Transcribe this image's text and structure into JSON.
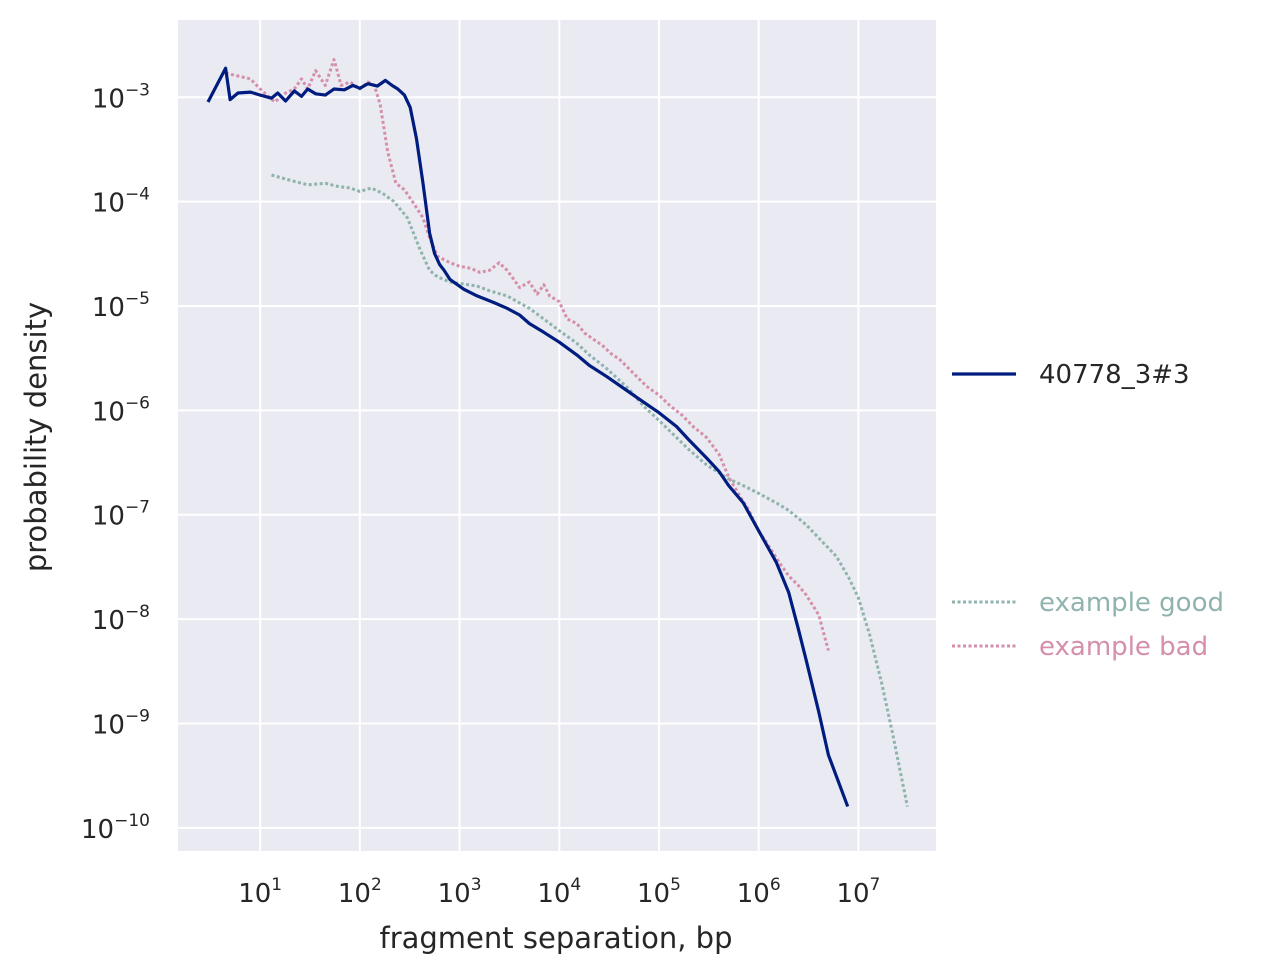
{
  "chart_data": {
    "type": "line",
    "title": "",
    "xlabel": "fragment separation, bp",
    "ylabel": "probability density",
    "x_scale": "log",
    "y_scale": "log",
    "xlim": [
      1.5,
      60000000
    ],
    "ylim": [
      6e-11,
      0.0055
    ],
    "grid": true,
    "x_ticks": [
      {
        "base": "10",
        "exp": "1",
        "value": 10
      },
      {
        "base": "10",
        "exp": "2",
        "value": 100
      },
      {
        "base": "10",
        "exp": "3",
        "value": 1000
      },
      {
        "base": "10",
        "exp": "4",
        "value": 10000
      },
      {
        "base": "10",
        "exp": "5",
        "value": 100000
      },
      {
        "base": "10",
        "exp": "6",
        "value": 1000000
      },
      {
        "base": "10",
        "exp": "7",
        "value": 10000000
      }
    ],
    "y_ticks": [
      {
        "base": "10",
        "exp": "−3",
        "value": 0.001
      },
      {
        "base": "10",
        "exp": "−4",
        "value": 0.0001
      },
      {
        "base": "10",
        "exp": "−5",
        "value": 1e-05
      },
      {
        "base": "10",
        "exp": "−6",
        "value": 1e-06
      },
      {
        "base": "10",
        "exp": "−7",
        "value": 1e-07
      },
      {
        "base": "10",
        "exp": "−8",
        "value": 1e-08
      },
      {
        "base": "10",
        "exp": "−9",
        "value": 1e-09
      },
      {
        "base": "10",
        "exp": "−10",
        "value": 1e-10
      }
    ],
    "series": [
      {
        "name": "40778_3#3",
        "color": "#001c7f",
        "style": "solid",
        "x": [
          3,
          4.5,
          5,
          6,
          8,
          10,
          13,
          15,
          18,
          22,
          26,
          30,
          36,
          45,
          55,
          70,
          85,
          100,
          120,
          150,
          180,
          210,
          240,
          280,
          320,
          370,
          430,
          500,
          560,
          630,
          700,
          800,
          950,
          1100,
          1500,
          2200,
          3000,
          4000,
          5000,
          7000,
          10000,
          15000,
          20000,
          30000,
          50000,
          70000,
          100000,
          150000,
          200000,
          300000,
          400000,
          500000,
          700000,
          1000000,
          1500000,
          2000000,
          2500000,
          3000000,
          4000000,
          5000000,
          7800000
        ],
        "y": [
          0.0009,
          0.0019,
          0.00095,
          0.0011,
          0.00112,
          0.00105,
          0.00098,
          0.0011,
          0.00092,
          0.00115,
          0.00102,
          0.0012,
          0.00108,
          0.00105,
          0.0012,
          0.00118,
          0.0013,
          0.00122,
          0.00135,
          0.00128,
          0.00145,
          0.0013,
          0.0012,
          0.00105,
          0.0008,
          0.0004,
          0.00015,
          5e-05,
          3.2e-05,
          2.5e-05,
          2.2e-05,
          1.8e-05,
          1.6e-05,
          1.45e-05,
          1.25e-05,
          1.08e-05,
          9.5e-06,
          8.2e-06,
          6.8e-06,
          5.6e-06,
          4.5e-06,
          3.4e-06,
          2.7e-06,
          2.1e-06,
          1.5e-06,
          1.2e-06,
          9.5e-07,
          7e-07,
          5.2e-07,
          3.5e-07,
          2.6e-07,
          1.9e-07,
          1.3e-07,
          7e-08,
          3.5e-08,
          1.8e-08,
          8e-09,
          4e-09,
          1.3e-09,
          5e-10,
          1.6e-10
        ]
      },
      {
        "name": "example good",
        "color": "#8fb3ad",
        "style": "dotted",
        "x": [
          13,
          20,
          30,
          45,
          60,
          80,
          100,
          130,
          170,
          220,
          300,
          400,
          500,
          600,
          800,
          1000,
          1500,
          2000,
          3000,
          5000,
          7000,
          10000,
          15000,
          20000,
          30000,
          50000,
          70000,
          100000,
          150000,
          200000,
          300000,
          500000,
          700000,
          1000000,
          1500000,
          2000000,
          3000000,
          4000000,
          6000000,
          8000000,
          10000000,
          13000000,
          17000000,
          22000000,
          31000000
        ],
        "y": [
          0.00018,
          0.00016,
          0.000145,
          0.00015,
          0.00014,
          0.000135,
          0.000125,
          0.000135,
          0.00012,
          0.0001,
          7e-05,
          3.5e-05,
          2.2e-05,
          1.9e-05,
          1.7e-05,
          1.65e-05,
          1.55e-05,
          1.4e-05,
          1.25e-05,
          9.5e-06,
          7.5e-06,
          5.8e-06,
          4.4e-06,
          3.4e-06,
          2.5e-06,
          1.6e-06,
          1.1e-06,
          8e-07,
          5.5e-07,
          4.2e-07,
          3e-07,
          2.2e-07,
          1.9e-07,
          1.6e-07,
          1.3e-07,
          1.1e-07,
          8e-08,
          6e-08,
          4e-08,
          2.5e-08,
          1.6e-08,
          7e-09,
          2.5e-09,
          8e-10,
          1.6e-10
        ]
      },
      {
        "name": "example bad",
        "color": "#d58fac",
        "style": "dotted",
        "x": [
          4.5,
          6,
          8,
          10,
          14,
          18,
          22,
          26,
          30,
          36,
          45,
          55,
          65,
          80,
          100,
          120,
          140,
          160,
          190,
          230,
          280,
          350,
          430,
          500,
          600,
          800,
          1000,
          1300,
          1600,
          2000,
          2500,
          3000,
          3500,
          4000,
          5000,
          6000,
          7000,
          8000,
          10000,
          12000,
          15000,
          18000,
          22000,
          27000,
          33000,
          40000,
          50000,
          60000,
          75000,
          100000,
          130000,
          170000,
          220000,
          300000,
          400000,
          500000,
          650000,
          800000,
          1000000,
          1300000,
          1600000,
          2000000,
          2500000,
          3000000,
          4000000,
          5000000
        ],
        "y": [
          0.0017,
          0.0016,
          0.0015,
          0.0012,
          0.0009,
          0.0011,
          0.0012,
          0.0015,
          0.0012,
          0.0018,
          0.0013,
          0.0023,
          0.0013,
          0.0014,
          0.0012,
          0.0014,
          0.0013,
          0.00085,
          0.0003,
          0.00015,
          0.00013,
          9.5e-05,
          7e-05,
          4.5e-05,
          3e-05,
          2.6e-05,
          2.4e-05,
          2.3e-05,
          2.1e-05,
          2.2e-05,
          2.6e-05,
          2.2e-05,
          1.8e-05,
          1.5e-05,
          1.7e-05,
          1.3e-05,
          1.6e-05,
          1.25e-05,
          1.1e-05,
          7.5e-06,
          6.8e-06,
          5.5e-06,
          4.8e-06,
          4.2e-06,
          3.5e-06,
          3.1e-06,
          2.5e-06,
          2.1e-06,
          1.7e-06,
          1.4e-06,
          1.1e-06,
          9e-07,
          7e-07,
          5.5e-07,
          3.8e-07,
          2.3e-07,
          1.5e-07,
          1.1e-07,
          7e-08,
          4.8e-08,
          3.5e-08,
          2.6e-08,
          2.1e-08,
          1.7e-08,
          1.1e-08,
          5e-09
        ]
      }
    ],
    "legend": {
      "placement": "right",
      "entries": [
        {
          "label": "40778_3#3",
          "color": "#001c7f",
          "text_color": "#262626",
          "style": "solid",
          "group": "top"
        },
        {
          "label": "example good",
          "color": "#8fb3ad",
          "text_color": "#8fb3ad",
          "style": "dotted",
          "group": "bottom"
        },
        {
          "label": "example bad",
          "color": "#d58fac",
          "text_color": "#d58fac",
          "style": "dotted",
          "group": "bottom"
        }
      ]
    },
    "colors": {
      "plot_background": "#eaeaf2",
      "grid": "#ffffff",
      "text": "#262626"
    }
  }
}
